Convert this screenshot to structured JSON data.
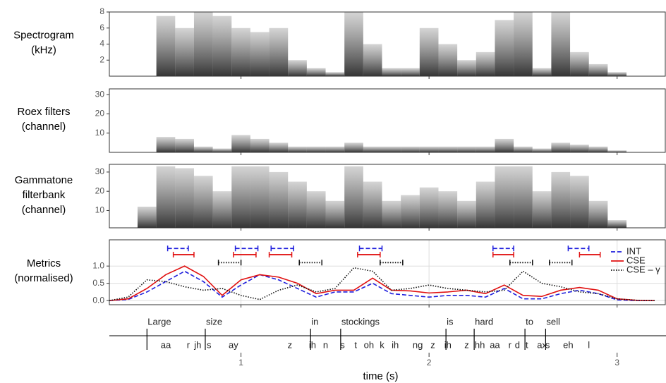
{
  "chart_data": [
    {
      "type": "heatmap",
      "title_lines": [
        "Spectrogram",
        "(kHz)"
      ],
      "xlim": [
        0.3,
        3.26
      ],
      "ylim": [
        0,
        8
      ],
      "yticks": [
        2,
        4,
        6,
        8
      ],
      "x": [
        0.3,
        0.4,
        0.5,
        0.6,
        0.7,
        0.8,
        0.9,
        1.0,
        1.1,
        1.2,
        1.3,
        1.4,
        1.5,
        1.6,
        1.7,
        1.8,
        1.9,
        2.0,
        2.1,
        2.2,
        2.3,
        2.4,
        2.5,
        2.6,
        2.7,
        2.8,
        2.9,
        3.0,
        3.1,
        3.2
      ],
      "values": [
        0,
        0,
        0,
        7.5,
        6,
        8,
        7.5,
        6,
        5.5,
        6,
        2,
        1,
        0.5,
        8,
        4,
        1,
        1,
        6,
        4,
        2,
        3,
        7,
        8,
        1,
        8,
        3,
        1.5,
        0.5,
        0,
        0
      ]
    },
    {
      "type": "heatmap",
      "title_lines": [
        "Roex filters",
        "(channel)"
      ],
      "xlim": [
        0.3,
        3.26
      ],
      "ylim": [
        0,
        33
      ],
      "yticks": [
        10,
        20,
        30
      ],
      "x": [
        0.3,
        0.4,
        0.5,
        0.6,
        0.7,
        0.8,
        0.9,
        1.0,
        1.1,
        1.2,
        1.3,
        1.4,
        1.5,
        1.6,
        1.7,
        1.8,
        1.9,
        2.0,
        2.1,
        2.2,
        2.3,
        2.4,
        2.5,
        2.6,
        2.7,
        2.8,
        2.9,
        3.0,
        3.1,
        3.2
      ],
      "values": [
        0,
        0,
        0,
        8,
        7,
        3,
        2,
        9,
        7,
        5,
        3,
        3,
        3,
        5,
        3,
        3,
        3,
        3,
        3,
        3,
        3,
        7,
        3,
        2,
        5,
        4,
        3,
        1,
        0,
        0
      ]
    },
    {
      "type": "heatmap",
      "title_lines": [
        "Gammatone",
        "filterbank",
        "(channel)"
      ],
      "xlim": [
        0.3,
        3.26
      ],
      "ylim": [
        1,
        34
      ],
      "yticks": [
        10,
        20,
        30
      ],
      "x": [
        0.3,
        0.4,
        0.5,
        0.6,
        0.7,
        0.8,
        0.9,
        1.0,
        1.1,
        1.2,
        1.3,
        1.4,
        1.5,
        1.6,
        1.7,
        1.8,
        1.9,
        2.0,
        2.1,
        2.2,
        2.3,
        2.4,
        2.5,
        2.6,
        2.7,
        2.8,
        2.9,
        3.0,
        3.1,
        3.2
      ],
      "values": [
        1,
        1,
        12,
        33,
        32,
        28,
        20,
        33,
        33,
        30,
        25,
        20,
        15,
        33,
        25,
        15,
        18,
        22,
        20,
        15,
        25,
        33,
        33,
        20,
        30,
        28,
        15,
        5,
        1,
        1
      ]
    },
    {
      "type": "line",
      "title_lines": [
        "Metrics",
        "(normalised)"
      ],
      "xlim": [
        0.3,
        3.26
      ],
      "ylim": [
        -0.12,
        1.76
      ],
      "yticks": [
        {
          "value": 0,
          "label": "0.0"
        },
        {
          "value": 0.5,
          "label": "0.5"
        },
        {
          "value": 1,
          "label": "1.0"
        }
      ],
      "grid": true,
      "x": [
        0.3,
        0.4,
        0.5,
        0.6,
        0.7,
        0.8,
        0.9,
        1.0,
        1.1,
        1.2,
        1.3,
        1.4,
        1.5,
        1.6,
        1.7,
        1.8,
        1.9,
        2.0,
        2.1,
        2.2,
        2.3,
        2.4,
        2.5,
        2.6,
        2.7,
        2.8,
        2.9,
        3.0,
        3.1,
        3.2
      ],
      "series": [
        {
          "name": "INT",
          "color": "#1f1fdd",
          "dash": "6,3",
          "values": [
            0,
            0.03,
            0.25,
            0.55,
            0.85,
            0.55,
            0.1,
            0.45,
            0.75,
            0.6,
            0.35,
            0.1,
            0.25,
            0.25,
            0.5,
            0.2,
            0.15,
            0.1,
            0.15,
            0.15,
            0.1,
            0.35,
            0.05,
            0.05,
            0.2,
            0.3,
            0.2,
            0.02,
            0,
            0
          ],
          "interval_y": 1.51,
          "intervals": [
            [
              0.61,
              0.72
            ],
            [
              0.97,
              1.09
            ],
            [
              1.16,
              1.28
            ],
            [
              1.63,
              1.75
            ],
            [
              2.34,
              2.45
            ],
            [
              2.74,
              2.85
            ]
          ]
        },
        {
          "name": "CSE",
          "color": "#e01010",
          "dash": "none",
          "values": [
            0,
            0.05,
            0.35,
            0.75,
            1.0,
            0.7,
            0.15,
            0.6,
            0.75,
            0.68,
            0.5,
            0.2,
            0.3,
            0.3,
            0.65,
            0.3,
            0.28,
            0.22,
            0.25,
            0.3,
            0.2,
            0.45,
            0.15,
            0.12,
            0.3,
            0.38,
            0.3,
            0.05,
            0.01,
            0
          ],
          "interval_y": 1.33,
          "intervals": [
            [
              0.64,
              0.75
            ],
            [
              0.96,
              1.08
            ],
            [
              1.15,
              1.27
            ],
            [
              1.62,
              1.74
            ],
            [
              2.34,
              2.45
            ],
            [
              2.8,
              2.91
            ]
          ]
        },
        {
          "name": "CSE – γ",
          "color": "#111111",
          "dash": "1.5,2",
          "values": [
            0,
            0.1,
            0.6,
            0.55,
            0.4,
            0.3,
            0.35,
            0.15,
            0.03,
            0.3,
            0.45,
            0.25,
            0.35,
            0.95,
            0.85,
            0.3,
            0.35,
            0.45,
            0.35,
            0.3,
            0.25,
            0.3,
            0.85,
            0.5,
            0.4,
            0.25,
            0.2,
            0.05,
            0.01,
            0
          ],
          "interval_y": 1.1,
          "intervals": [
            [
              0.88,
              1.0
            ],
            [
              1.31,
              1.43
            ],
            [
              1.74,
              1.86
            ],
            [
              2.43,
              2.55
            ],
            [
              2.64,
              2.76
            ]
          ]
        }
      ]
    },
    {
      "type": "tiers",
      "xlim": [
        0.3,
        3.26
      ],
      "xticks": [
        1,
        2,
        3
      ],
      "xlabel": "time (s)",
      "words": [
        "Large",
        "size",
        "in",
        "stockings",
        "is",
        "hard",
        "to",
        "sell"
      ],
      "word_starts": [
        0.5,
        0.81,
        1.37,
        1.53,
        2.09,
        2.24,
        2.51,
        2.62
      ],
      "phones": [
        "aa",
        "r",
        "jh",
        "s",
        "ay",
        "z",
        "ih",
        "n",
        "s",
        "t",
        "oh",
        "k",
        "ih",
        "ng",
        "z",
        "ih",
        "z",
        "hh",
        "aa",
        "r",
        "d",
        "t",
        "ax",
        "s",
        "eh",
        "l"
      ],
      "phone_times": [
        0.6,
        0.72,
        0.77,
        0.83,
        0.96,
        1.26,
        1.38,
        1.45,
        1.54,
        1.61,
        1.68,
        1.75,
        1.82,
        1.94,
        2.02,
        2.1,
        2.2,
        2.27,
        2.35,
        2.43,
        2.47,
        2.52,
        2.6,
        2.63,
        2.74,
        2.85
      ]
    }
  ]
}
